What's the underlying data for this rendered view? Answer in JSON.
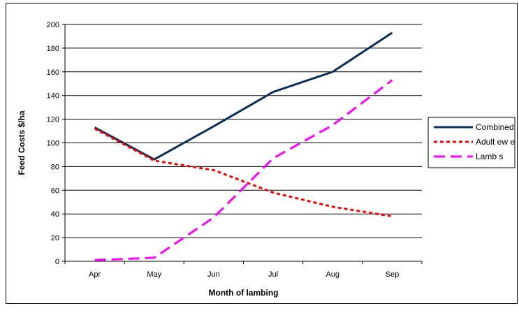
{
  "chart_data": {
    "type": "line",
    "title": "",
    "xlabel": "Month of lambing",
    "ylabel": "Feed Costs $/ha",
    "categories": [
      "Apr",
      "May",
      "Jun",
      "Jul",
      "Aug",
      "Sep"
    ],
    "ylim": [
      0,
      200
    ],
    "yticks": [
      0,
      20,
      40,
      60,
      80,
      100,
      120,
      140,
      160,
      180,
      200
    ],
    "grid": true,
    "legend_position": "right",
    "series": [
      {
        "name": "Combined",
        "values": [
          113,
          86,
          114,
          143,
          160,
          193
        ],
        "color": "#0b2e59",
        "dash": "solid"
      },
      {
        "name": "Adult ew e",
        "values": [
          112,
          85,
          77,
          58,
          46,
          38
        ],
        "color": "#ff0000",
        "dash": "dotted"
      },
      {
        "name": "Lamb s",
        "values": [
          1,
          3,
          37,
          87,
          115,
          153
        ],
        "color": "#ff00ff",
        "dash": "dashed"
      }
    ]
  }
}
